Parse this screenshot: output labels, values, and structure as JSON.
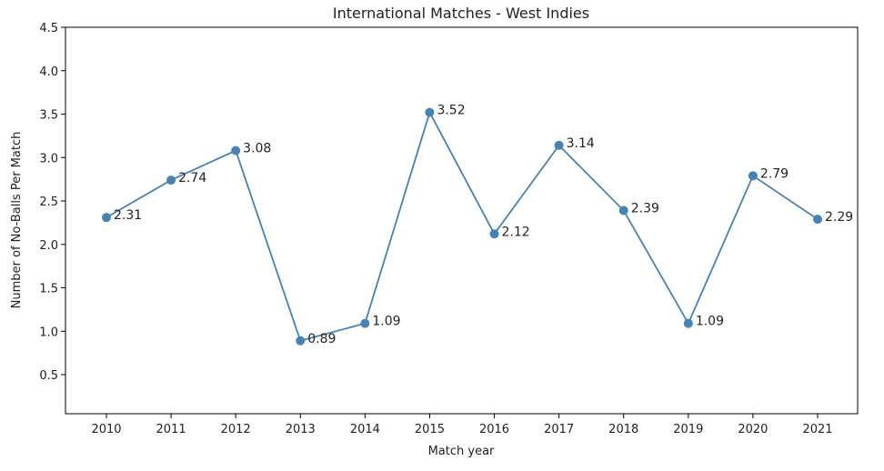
{
  "chart_data": {
    "type": "line",
    "title": "International Matches - West Indies",
    "xlabel": "Match year",
    "ylabel": "Number of No-Balls Per Match",
    "categories": [
      "2010",
      "2011",
      "2012",
      "2013",
      "2014",
      "2015",
      "2016",
      "2017",
      "2018",
      "2019",
      "2020",
      "2021"
    ],
    "series": [
      {
        "name": "West Indies",
        "values": [
          2.31,
          2.74,
          3.08,
          0.89,
          1.09,
          3.52,
          2.12,
          3.14,
          2.39,
          1.09,
          2.79,
          2.29
        ]
      }
    ],
    "data_labels": [
      "2.31",
      "2.74",
      "3.08",
      "0.89",
      "1.09",
      "3.52",
      "2.12",
      "3.14",
      "2.39",
      "1.09",
      "2.79",
      "2.29"
    ],
    "ylim": [
      0.05,
      4.5
    ],
    "yticks": [
      "0.5",
      "1.0",
      "1.5",
      "2.0",
      "2.5",
      "3.0",
      "3.5",
      "4.0",
      "4.5"
    ],
    "grid": false,
    "line_color": "#4682b4",
    "marker": "circle"
  }
}
